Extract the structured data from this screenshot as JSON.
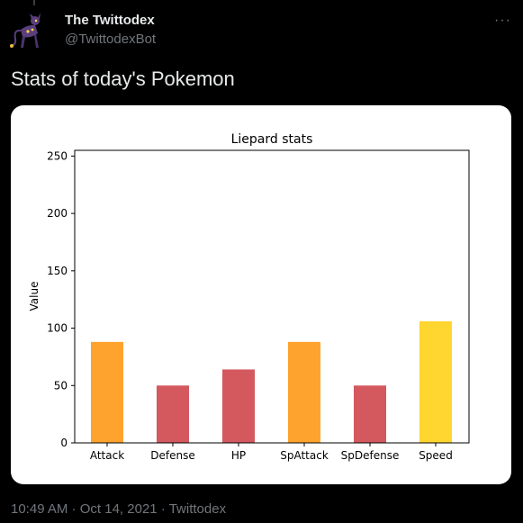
{
  "account": {
    "display_name": "The Twittodex",
    "handle": "@TwittodexBot",
    "avatar_icon": "liepard-avatar-icon"
  },
  "more_icon": "more-options-icon",
  "tweet_text": "Stats of today's Pokemon",
  "footer": {
    "time": "10:49 AM",
    "separator": " · ",
    "date": "Oct 14, 2021",
    "source": "Twittodex"
  },
  "chart_data": {
    "type": "bar",
    "title": "Liepard stats",
    "xlabel": "",
    "ylabel": "Value",
    "categories": [
      "Attack",
      "Defense",
      "HP",
      "SpAttack",
      "SpDefense",
      "Speed"
    ],
    "values": [
      88,
      50,
      64,
      88,
      50,
      106
    ],
    "bar_colors": [
      "#ffa32f",
      "#d3595f",
      "#d3595f",
      "#ffa32f",
      "#d3595f",
      "#ffd52f"
    ],
    "ylim": [
      0,
      255
    ],
    "yticks": [
      0,
      50,
      100,
      150,
      200,
      250
    ],
    "grid": false
  }
}
